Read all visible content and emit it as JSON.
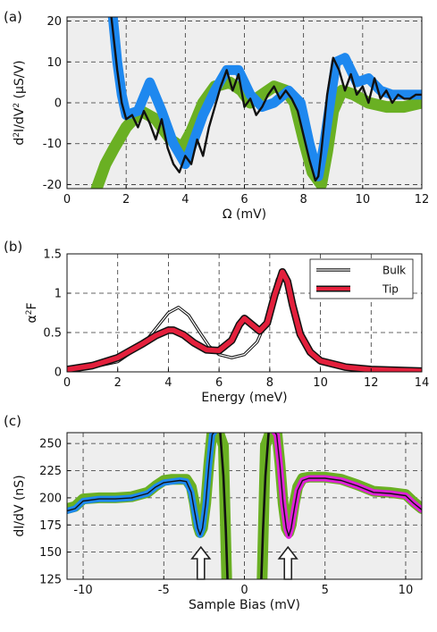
{
  "chart_data": [
    {
      "panel": "(a)",
      "type": "line",
      "xlabel": "Ω (mV)",
      "ylabel": "d²I/dV² (μS/V)",
      "xlim": [
        0,
        12
      ],
      "ylim": [
        -21,
        21
      ],
      "xticks": [
        0,
        2,
        4,
        6,
        8,
        10,
        12
      ],
      "yticks": [
        -20,
        -10,
        0,
        10,
        20
      ],
      "grid": true,
      "background": "#eeeeee",
      "series": [
        {
          "color": "#6ab023",
          "x": [
            1.0,
            1.3,
            1.6,
            2.0,
            2.5,
            3.0,
            3.5,
            3.9,
            4.2,
            4.6,
            5.0,
            5.5,
            5.9,
            6.2,
            6.6,
            7.0,
            7.4,
            7.7,
            8.0,
            8.3,
            8.6,
            8.8,
            9.0,
            9.3,
            9.7,
            10.2,
            10.8,
            11.4,
            12.0
          ],
          "y": [
            -21,
            -15,
            -11,
            -6,
            -2,
            -4,
            -9,
            -11,
            -7,
            0,
            4,
            5,
            3,
            0,
            2,
            4,
            3,
            0,
            -9,
            -17,
            -20,
            -12,
            -2,
            3,
            2,
            0,
            -1,
            -1,
            0
          ]
        },
        {
          "color": "#1e88ef",
          "x": [
            1.55,
            1.7,
            1.85,
            2.0,
            2.4,
            2.8,
            3.2,
            3.6,
            4.0,
            4.3,
            4.6,
            5.0,
            5.4,
            5.8,
            6.2,
            6.6,
            7.0,
            7.5,
            7.9,
            8.2,
            8.5,
            8.7,
            8.9,
            9.1,
            9.4,
            9.8,
            10.2,
            10.6,
            11.0,
            11.5,
            12.0
          ],
          "y": [
            21,
            10,
            2,
            -3,
            -2,
            5,
            -2,
            -10,
            -15,
            -9,
            -3,
            3,
            8,
            8,
            2,
            -1,
            0,
            3,
            0,
            -10,
            -18,
            -10,
            0,
            10,
            11,
            5,
            6,
            3,
            2,
            2,
            2
          ]
        },
        {
          "color": "#111111",
          "x": [
            1.5,
            1.7,
            1.85,
            2.0,
            2.2,
            2.4,
            2.6,
            2.8,
            3.0,
            3.2,
            3.4,
            3.6,
            3.8,
            4.0,
            4.2,
            4.4,
            4.6,
            4.8,
            5.0,
            5.2,
            5.4,
            5.6,
            5.8,
            6.0,
            6.2,
            6.4,
            6.6,
            6.8,
            7.0,
            7.2,
            7.4,
            7.6,
            7.8,
            8.0,
            8.2,
            8.4,
            8.5,
            8.6,
            8.8,
            9.0,
            9.2,
            9.4,
            9.6,
            9.8,
            10.0,
            10.2,
            10.4,
            10.6,
            10.8,
            11.0,
            11.2,
            11.4,
            11.6,
            11.8,
            12.0
          ],
          "y": [
            21,
            8,
            0,
            -4,
            -3,
            -6,
            -2,
            -5,
            -9,
            -4,
            -11,
            -15,
            -17,
            -13,
            -15,
            -9,
            -13,
            -6,
            -1,
            4,
            8,
            3,
            7,
            -1,
            1,
            -3,
            -1,
            2,
            4,
            1,
            3,
            1,
            -2,
            -8,
            -14,
            -19,
            -18,
            -12,
            2,
            11,
            8,
            3,
            7,
            2,
            4,
            0,
            6,
            1,
            3,
            0,
            2,
            1,
            1,
            2,
            2
          ]
        }
      ]
    },
    {
      "panel": "(b)",
      "type": "line",
      "xlabel": "Energy (meV)",
      "ylabel": "α²F",
      "xlim": [
        0,
        14
      ],
      "ylim": [
        0,
        1.5
      ],
      "xticks": [
        0,
        2,
        4,
        6,
        8,
        10,
        12,
        14
      ],
      "yticks": [
        0,
        0.5,
        1,
        1.5
      ],
      "grid": true,
      "background": "#ffffff",
      "legend": "top-right",
      "series": [
        {
          "name": "Bulk",
          "color": "#111111",
          "x": [
            0,
            1,
            2,
            3,
            3.5,
            4.0,
            4.4,
            4.8,
            5.2,
            5.6,
            6.0,
            6.5,
            7.0,
            7.5,
            7.8,
            8.1,
            8.3,
            8.5,
            8.7,
            8.9,
            9.2,
            9.6,
            10,
            11,
            12,
            13,
            14
          ],
          "y": [
            0.02,
            0.06,
            0.13,
            0.35,
            0.55,
            0.75,
            0.82,
            0.72,
            0.52,
            0.33,
            0.22,
            0.18,
            0.22,
            0.38,
            0.6,
            0.95,
            1.18,
            1.24,
            1.1,
            0.85,
            0.5,
            0.25,
            0.14,
            0.06,
            0.03,
            0.02,
            0.01
          ]
        },
        {
          "name": "Tip",
          "color": "#e3203c",
          "x": [
            0,
            1,
            2,
            3,
            3.5,
            4.0,
            4.2,
            4.6,
            5.0,
            5.5,
            6.0,
            6.5,
            6.8,
            7.0,
            7.3,
            7.6,
            7.9,
            8.2,
            8.5,
            8.7,
            8.9,
            9.2,
            9.6,
            10,
            11,
            12,
            13,
            14
          ],
          "y": [
            0.03,
            0.08,
            0.18,
            0.36,
            0.46,
            0.53,
            0.53,
            0.47,
            0.37,
            0.28,
            0.27,
            0.4,
            0.6,
            0.68,
            0.6,
            0.52,
            0.62,
            0.98,
            1.27,
            1.15,
            0.85,
            0.48,
            0.25,
            0.14,
            0.06,
            0.03,
            0.02,
            0.01
          ]
        }
      ]
    },
    {
      "panel": "(c)",
      "type": "line",
      "xlabel": "Sample Bias (mV)",
      "ylabel": "dI/dV (nS)",
      "xlim": [
        -11,
        11
      ],
      "ylim": [
        125,
        260
      ],
      "xticks": [
        -10,
        -5,
        0,
        5,
        10
      ],
      "yticks": [
        125,
        150,
        175,
        200,
        225,
        250
      ],
      "grid": true,
      "background": "#eeeeee",
      "annotations": [
        "arrow at -2.7 mV",
        "arrow at 2.7 mV"
      ],
      "series": [
        {
          "color": "#6ab023",
          "x": [
            -11,
            -10.5,
            -10,
            -9,
            -8,
            -7,
            -6,
            -5.5,
            -5,
            -4.5,
            -4,
            -3.6,
            -3.3,
            -3.1,
            -2.9,
            -2.75,
            -2.6,
            -2.4,
            -2.2,
            -2.0,
            -1.7,
            -1.3,
            -1.1
          ],
          "y": [
            190,
            192,
            199,
            200,
            200,
            201,
            205,
            211,
            216,
            217,
            217,
            217,
            210,
            195,
            175,
            168,
            172,
            195,
            232,
            262,
            265,
            248,
            125
          ]
        },
        {
          "color": "#6ab023",
          "x": [
            1.1,
            1.3,
            1.7,
            2.0,
            2.2,
            2.4,
            2.6,
            2.75,
            2.9,
            3.1,
            3.3,
            3.6,
            4.0,
            4.5,
            5.0,
            6.0,
            7.0,
            8.0,
            9.0,
            10.0,
            10.5,
            11
          ],
          "y": [
            125,
            248,
            265,
            262,
            232,
            195,
            172,
            168,
            175,
            195,
            210,
            218,
            219,
            219,
            219,
            217,
            212,
            206,
            205,
            203,
            196,
            190
          ]
        },
        {
          "color": "#1e88ef",
          "x": [
            -11,
            -10.5,
            -10,
            -9,
            -8,
            -7,
            -6,
            -5.5,
            -5,
            -4.5,
            -4,
            -3.6,
            -3.3,
            -3.1,
            -2.9,
            -2.75,
            -2.6,
            -2.4,
            -2.2,
            -2.0,
            -1.8
          ],
          "y": [
            188,
            190,
            197,
            199,
            199,
            200,
            204,
            210,
            214,
            215,
            216,
            215,
            205,
            188,
            172,
            166,
            172,
            195,
            230,
            258,
            262
          ]
        },
        {
          "color": "#e020d8",
          "x": [
            1.8,
            2.0,
            2.2,
            2.4,
            2.6,
            2.75,
            2.9,
            3.1,
            3.3,
            3.6,
            4.0,
            4.5,
            5.0,
            6.0,
            7.0,
            8.0,
            9.0,
            10.0,
            10.5,
            11
          ],
          "y": [
            262,
            258,
            230,
            195,
            172,
            165,
            172,
            190,
            207,
            216,
            218,
            218,
            218,
            216,
            211,
            205,
            204,
            202,
            195,
            189
          ]
        },
        {
          "color": "#111111",
          "x": [
            -11,
            -10.5,
            -10,
            -9,
            -8,
            -7,
            -6,
            -5.5,
            -5,
            -4.5,
            -4,
            -3.6,
            -3.3,
            -3.1,
            -2.9,
            -2.75,
            -2.6,
            -2.4,
            -2.2,
            -2.0,
            -1.8
          ],
          "y": [
            188,
            190,
            197,
            199,
            199,
            200,
            204,
            210,
            214,
            215,
            216,
            215,
            205,
            188,
            172,
            166,
            172,
            195,
            230,
            258,
            262
          ]
        },
        {
          "color": "#111111",
          "x": [
            -1.5,
            -1.3,
            -1.15,
            -1.05
          ],
          "y": [
            260,
            220,
            170,
            125
          ]
        },
        {
          "color": "#111111",
          "x": [
            1.05,
            1.15,
            1.3,
            1.5
          ],
          "y": [
            125,
            170,
            220,
            260
          ]
        },
        {
          "color": "#111111",
          "x": [
            1.8,
            2.0,
            2.2,
            2.4,
            2.6,
            2.75,
            2.9,
            3.1,
            3.3,
            3.6,
            4.0,
            4.5,
            5.0,
            6.0,
            7.0,
            8.0,
            9.0,
            10.0,
            10.5,
            11
          ],
          "y": [
            262,
            258,
            230,
            195,
            172,
            165,
            172,
            190,
            207,
            216,
            218,
            218,
            218,
            216,
            211,
            205,
            204,
            202,
            195,
            189
          ]
        }
      ]
    }
  ]
}
